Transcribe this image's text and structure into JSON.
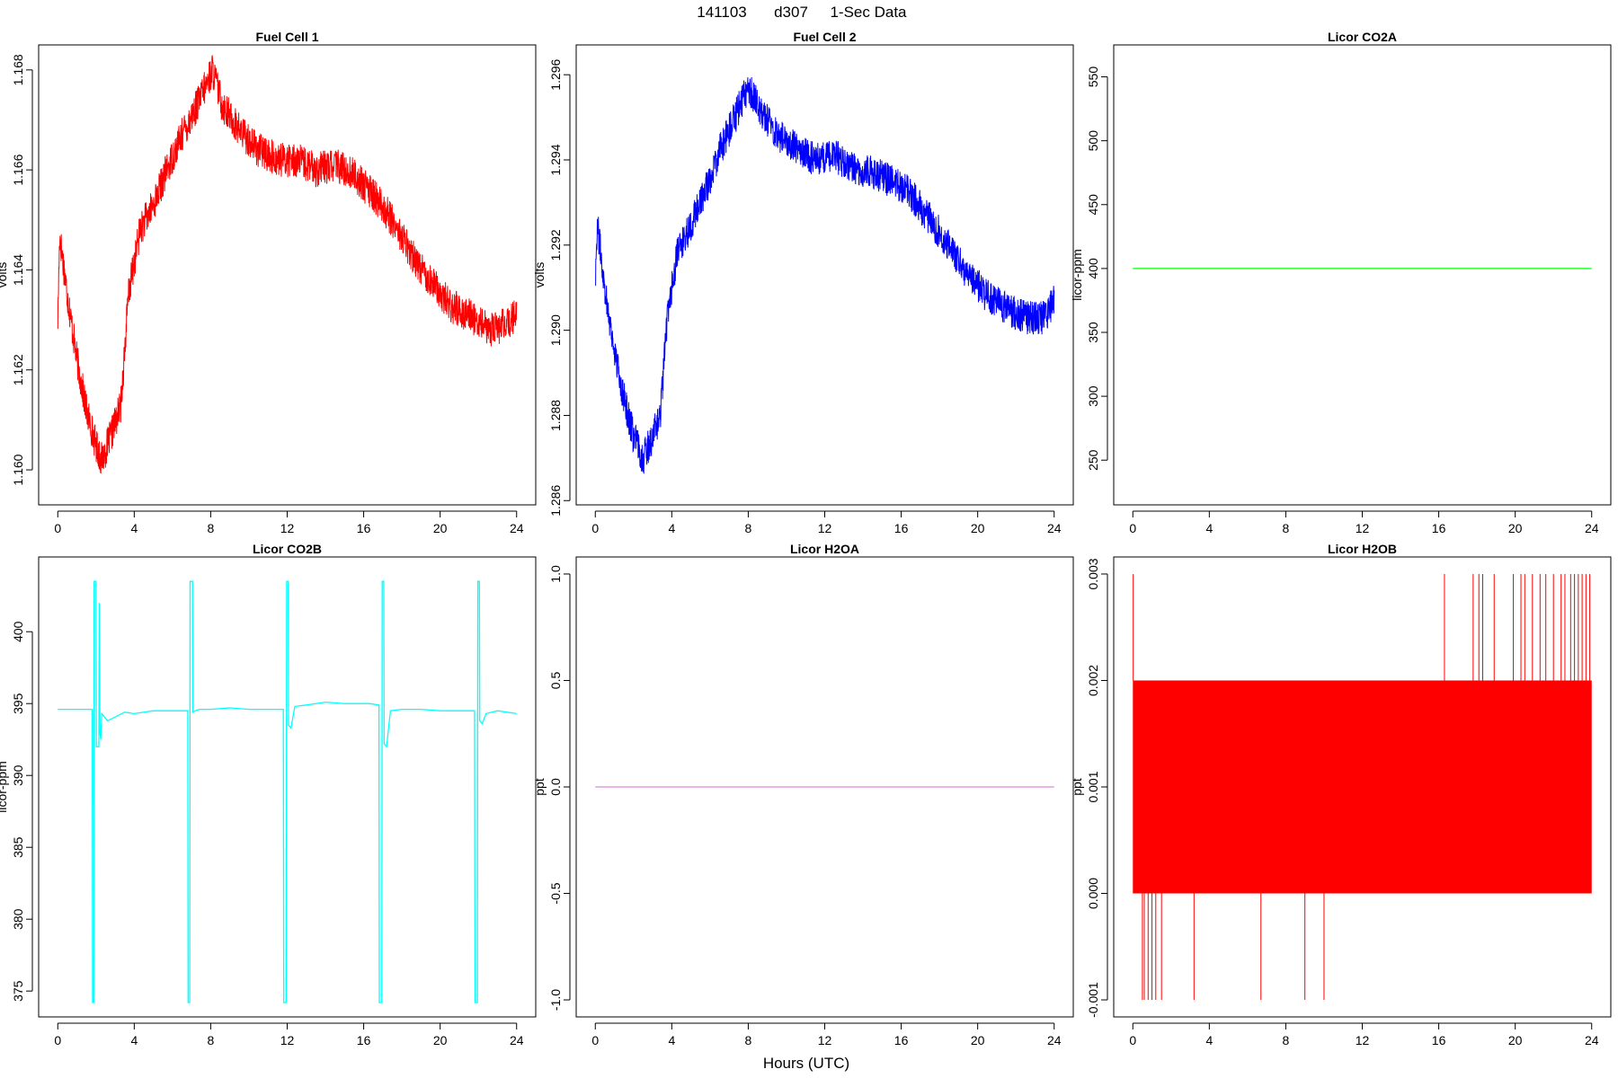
{
  "figure": {
    "title_date": "141103",
    "title_day": "d307",
    "title_label": "1-Sec Data",
    "xlabel": "Hours (UTC)"
  },
  "chart_data": [
    {
      "type": "line",
      "title": "Fuel Cell 1",
      "ylabel": "volts",
      "color": "#ff0000",
      "xlim": [
        -1,
        25
      ],
      "ylim": [
        1.1593,
        1.1685
      ],
      "xticks": [
        0,
        4,
        8,
        12,
        16,
        20,
        24
      ],
      "xtick_labels": [
        "0",
        "4",
        "8",
        "12",
        "16",
        "20",
        "24"
      ],
      "yticks": [
        1.16,
        1.162,
        1.164,
        1.166,
        1.168
      ],
      "ytick_labels": [
        "1.160",
        "1.162",
        "1.164",
        "1.166",
        "1.168"
      ],
      "band": 0.0007,
      "x": [
        0,
        0.1,
        0.5,
        1,
        1.5,
        2,
        2.3,
        2.8,
        3.3,
        3.7,
        4.3,
        5,
        5.7,
        6.5,
        7.3,
        8.1,
        8.6,
        9.5,
        10.5,
        11.5,
        12.5,
        13.5,
        14.5,
        15.5,
        16.5,
        17.5,
        18.5,
        19.5,
        20.5,
        21.5,
        22.5,
        23.5,
        24
      ],
      "y": [
        1.163,
        1.1647,
        1.1635,
        1.1622,
        1.1612,
        1.1605,
        1.1602,
        1.1607,
        1.1613,
        1.1635,
        1.1648,
        1.1653,
        1.166,
        1.1667,
        1.1673,
        1.168,
        1.1673,
        1.1668,
        1.1664,
        1.1662,
        1.1662,
        1.166,
        1.1661,
        1.1659,
        1.1655,
        1.165,
        1.1643,
        1.1638,
        1.1633,
        1.1631,
        1.1628,
        1.1629,
        1.1631
      ]
    },
    {
      "type": "line",
      "title": "Fuel Cell 2",
      "ylabel": "volts",
      "color": "#0000ff",
      "xlim": [
        -1,
        25
      ],
      "ylim": [
        1.2859,
        1.2967
      ],
      "xticks": [
        0,
        4,
        8,
        12,
        16,
        20,
        24
      ],
      "xtick_labels": [
        "0",
        "4",
        "8",
        "12",
        "16",
        "20",
        "24"
      ],
      "yticks": [
        1.286,
        1.288,
        1.29,
        1.292,
        1.294,
        1.296
      ],
      "ytick_labels": [
        "1.286",
        "1.288",
        "1.290",
        "1.292",
        "1.294",
        "1.296"
      ],
      "band": 0.0008,
      "x": [
        0,
        0.1,
        0.5,
        1,
        1.5,
        2,
        2.5,
        3,
        3.4,
        3.8,
        4.3,
        5,
        5.7,
        6.5,
        7.3,
        8,
        8.6,
        9.5,
        10.5,
        11.5,
        12.5,
        13.5,
        14.5,
        15.5,
        16.5,
        17.5,
        18.5,
        19.5,
        20.5,
        21.5,
        22.5,
        23.5,
        24
      ],
      "y": [
        1.2912,
        1.2925,
        1.291,
        1.2895,
        1.2884,
        1.2875,
        1.287,
        1.2875,
        1.288,
        1.2905,
        1.2918,
        1.2925,
        1.2932,
        1.2942,
        1.295,
        1.2957,
        1.2952,
        1.2946,
        1.2943,
        1.294,
        1.2941,
        1.2938,
        1.2937,
        1.2935,
        1.2932,
        1.2926,
        1.292,
        1.2913,
        1.2908,
        1.2905,
        1.2903,
        1.2903,
        1.2907
      ]
    },
    {
      "type": "line",
      "title": "Licor CO2A",
      "ylabel": "licor-ppm",
      "color": "#00ff00",
      "xlim": [
        -1,
        25
      ],
      "ylim": [
        215,
        575
      ],
      "xticks": [
        0,
        4,
        8,
        12,
        16,
        20,
        24
      ],
      "xtick_labels": [
        "0",
        "4",
        "8",
        "12",
        "16",
        "20",
        "24"
      ],
      "yticks": [
        250,
        300,
        350,
        400,
        450,
        500,
        550
      ],
      "ytick_labels": [
        "250",
        "300",
        "350",
        "400",
        "450",
        "500",
        "550"
      ],
      "x": [
        0,
        24
      ],
      "y": [
        400,
        400
      ]
    },
    {
      "type": "line",
      "title": "Licor CO2B",
      "ylabel": "licor-ppm",
      "color": "#00ffff",
      "xlim": [
        -1,
        25
      ],
      "ylim": [
        373.2,
        405.2
      ],
      "xticks": [
        0,
        4,
        8,
        12,
        16,
        20,
        24
      ],
      "xtick_labels": [
        "0",
        "4",
        "8",
        "12",
        "16",
        "20",
        "24"
      ],
      "yticks": [
        375,
        380,
        385,
        390,
        395,
        400
      ],
      "ytick_labels": [
        "375",
        "380",
        "385",
        "390",
        "395",
        "400"
      ],
      "x": [
        0,
        1.8,
        1.82,
        1.88,
        1.9,
        2.0,
        2.02,
        2.15,
        2.17,
        2.2,
        2.25,
        2.3,
        2.6,
        3.5,
        4,
        5,
        6,
        6.8,
        6.82,
        6.9,
        6.92,
        7.05,
        7.07,
        7.2,
        7.4,
        8,
        9,
        10,
        11,
        11.8,
        11.82,
        11.95,
        11.97,
        12.05,
        12.07,
        12.2,
        12.4,
        13,
        14,
        15,
        16.3,
        16.8,
        16.82,
        16.95,
        16.97,
        17.05,
        17.07,
        17.2,
        17.4,
        18,
        19,
        20,
        21,
        21.8,
        21.82,
        21.95,
        21.97,
        22.05,
        22.07,
        22.2,
        22.4,
        23,
        24
      ],
      "y": [
        394.6,
        394.6,
        374.2,
        374.2,
        403.5,
        403.5,
        392.0,
        392.0,
        402.0,
        393.0,
        392.5,
        394.3,
        393.8,
        394.4,
        394.3,
        394.5,
        394.5,
        394.5,
        374.2,
        374.2,
        403.5,
        403.5,
        394.4,
        394.5,
        394.6,
        394.6,
        394.7,
        394.6,
        394.6,
        394.6,
        374.2,
        374.2,
        403.5,
        403.5,
        393.5,
        393.3,
        394.8,
        394.9,
        395.1,
        395.0,
        395.0,
        394.9,
        374.2,
        374.2,
        403.5,
        403.5,
        392.2,
        392.0,
        394.5,
        394.6,
        394.6,
        394.5,
        394.5,
        394.5,
        374.2,
        374.2,
        403.5,
        403.5,
        393.8,
        393.6,
        394.3,
        394.5,
        394.3
      ]
    },
    {
      "type": "line",
      "title": "Licor H2OA",
      "ylabel": "ppt",
      "color": "#dd88dd",
      "xlim": [
        -1,
        25
      ],
      "ylim": [
        -1.08,
        1.08
      ],
      "xticks": [
        0,
        4,
        8,
        12,
        16,
        20,
        24
      ],
      "xtick_labels": [
        "0",
        "4",
        "8",
        "12",
        "16",
        "20",
        "24"
      ],
      "yticks": [
        -1.0,
        -0.5,
        0.0,
        0.5,
        1.0
      ],
      "ytick_labels": [
        "-1.0",
        "-0.5",
        "0.0",
        "0.5",
        "1.0"
      ],
      "x": [
        0,
        24
      ],
      "y": [
        0,
        0
      ]
    },
    {
      "type": "line",
      "title": "Licor H2OB",
      "ylabel": "ppt",
      "color": "#ff0000",
      "xlim": [
        -1,
        25
      ],
      "ylim": [
        -0.00116,
        0.00316
      ],
      "xticks": [
        0,
        4,
        8,
        12,
        16,
        20,
        24
      ],
      "xtick_labels": [
        "0",
        "4",
        "8",
        "12",
        "16",
        "20",
        "24"
      ],
      "yticks": [
        -0.001,
        0.0,
        0.001,
        0.002,
        0.003
      ],
      "ytick_labels": [
        "-0.001",
        "0.000",
        "0.001",
        "0.002",
        "0.003"
      ],
      "dense_blocks": [
        {
          "x0": 0.0,
          "x1": 24.0,
          "y0": 0.0,
          "y1": 0.001
        },
        {
          "x0": 0.0,
          "x1": 24.0,
          "y0": 0.001,
          "y1": 0.002
        }
      ],
      "spikes_low": [
        0.5,
        0.6,
        0.8,
        1.0,
        1.2,
        1.5,
        3.2,
        6.7,
        9.0,
        10.0
      ],
      "spikes_high": [
        0.02,
        16.3,
        17.8,
        18.1,
        18.3,
        18.9,
        19.9,
        20.3,
        20.5,
        20.9,
        21.3,
        21.6,
        22.0,
        22.4,
        22.6,
        22.9,
        23.1,
        23.3,
        23.5,
        23.7,
        23.9
      ]
    }
  ]
}
